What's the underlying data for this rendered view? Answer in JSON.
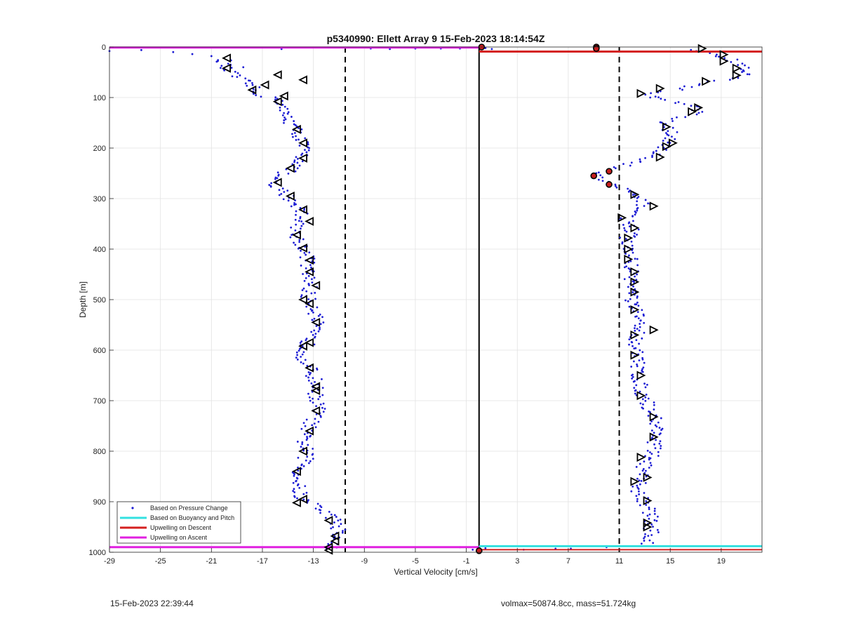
{
  "chart_data": {
    "type": "scatter",
    "title": "p5340990: Ellett Array 9 15-Feb-2023 18:14:54Z",
    "xlabel": "Vertical Velocity [cm/s]",
    "ylabel": "Depth [m]",
    "xlim": [
      -29,
      22.2
    ],
    "ylim": [
      1000,
      0
    ],
    "xticks": [
      -29,
      -25,
      -21,
      -17,
      -13,
      -9,
      -5,
      -1,
      3,
      7,
      11,
      15,
      19
    ],
    "yticks": [
      0,
      100,
      200,
      300,
      400,
      500,
      600,
      700,
      800,
      900,
      1000
    ],
    "grid": true,
    "legend_position": "bottom-left",
    "colors": {
      "pressure": "#1c1cd4",
      "buoyancy": "#33e0e0",
      "descent": "#d42020",
      "ascent": "#e020e0",
      "marker_outline": "#000000",
      "grid": "#e2e2e2"
    },
    "legend": [
      {
        "label": "Based on Pressure Change",
        "style": "dot",
        "color": "#1c1cd4"
      },
      {
        "label": "Based on Buoyancy and Pitch",
        "style": "line",
        "color": "#33e0e0"
      },
      {
        "label": "Upwelling on Descent",
        "style": "line",
        "color": "#d42020"
      },
      {
        "label": "Upwelling on Ascent",
        "style": "line",
        "color": "#e020e0"
      }
    ],
    "vertical_lines": [
      {
        "x": -10.5,
        "style": "dashed"
      },
      {
        "x": 0,
        "style": "solid"
      },
      {
        "x": 11,
        "style": "dashed"
      }
    ],
    "ascent_profile": [
      [
        -20,
        25
      ],
      [
        -20,
        42
      ],
      [
        -19,
        60
      ],
      [
        -18,
        75
      ],
      [
        -17.5,
        90
      ],
      [
        -16.5,
        100
      ],
      [
        -15.5,
        105
      ],
      [
        -15.5,
        125
      ],
      [
        -15,
        140
      ],
      [
        -14.5,
        160
      ],
      [
        -14,
        180
      ],
      [
        -13.8,
        200
      ],
      [
        -14,
        230
      ],
      [
        -15,
        245
      ],
      [
        -16.2,
        260
      ],
      [
        -16.5,
        272
      ],
      [
        -15.5,
        285
      ],
      [
        -14.8,
        300
      ],
      [
        -14,
        320
      ],
      [
        -13.8,
        345
      ],
      [
        -14.5,
        370
      ],
      [
        -13.8,
        395
      ],
      [
        -13.4,
        420
      ],
      [
        -13.5,
        445
      ],
      [
        -13.2,
        470
      ],
      [
        -13.5,
        495
      ],
      [
        -12.8,
        520
      ],
      [
        -12.8,
        545
      ],
      [
        -13.2,
        565
      ],
      [
        -13.5,
        590
      ],
      [
        -13.8,
        615
      ],
      [
        -13.2,
        640
      ],
      [
        -12.8,
        665
      ],
      [
        -12.8,
        695
      ],
      [
        -12.6,
        720
      ],
      [
        -13.2,
        745
      ],
      [
        -13.8,
        770
      ],
      [
        -13.6,
        795
      ],
      [
        -13.6,
        820
      ],
      [
        -14.2,
        845
      ],
      [
        -14.2,
        870
      ],
      [
        -14,
        895
      ],
      [
        -12.6,
        910
      ],
      [
        -11.8,
        925
      ],
      [
        -11.2,
        940
      ],
      [
        -11,
        955
      ],
      [
        -11.2,
        970
      ],
      [
        -11.6,
        985
      ],
      [
        -11.6,
        995
      ]
    ],
    "ascent_markers": [
      [
        -19.8,
        22
      ],
      [
        -19.8,
        42
      ],
      [
        -15.8,
        55
      ],
      [
        -13.8,
        65
      ],
      [
        -16.8,
        75
      ],
      [
        -17.8,
        85
      ],
      [
        -15.3,
        97
      ],
      [
        -15.8,
        108
      ],
      [
        -14.3,
        163
      ],
      [
        -13.8,
        190
      ],
      [
        -13.8,
        220
      ],
      [
        -14.8,
        240
      ],
      [
        -15.8,
        268
      ],
      [
        -14.8,
        295
      ],
      [
        -13.8,
        322
      ],
      [
        -13.3,
        345
      ],
      [
        -14.3,
        372
      ],
      [
        -13.8,
        398
      ],
      [
        -13.3,
        422
      ],
      [
        -13.3,
        445
      ],
      [
        -12.8,
        472
      ],
      [
        -13.8,
        500
      ],
      [
        -13.3,
        508
      ],
      [
        -12.8,
        545
      ],
      [
        -13.3,
        585
      ],
      [
        -13.8,
        592
      ],
      [
        -13.3,
        635
      ],
      [
        -12.8,
        672
      ],
      [
        -12.8,
        680
      ],
      [
        -12.8,
        720
      ],
      [
        -13.3,
        760
      ],
      [
        -13.8,
        800
      ],
      [
        -14.3,
        840
      ],
      [
        -13.8,
        895
      ],
      [
        -14.3,
        902
      ],
      [
        -11.8,
        937
      ],
      [
        -11.3,
        968
      ],
      [
        -11.3,
        978
      ],
      [
        -11.8,
        990
      ]
    ],
    "descent_profile": [
      [
        16.5,
        5
      ],
      [
        18,
        12
      ],
      [
        19.5,
        22
      ],
      [
        20.5,
        35
      ],
      [
        21,
        50
      ],
      [
        20.5,
        60
      ],
      [
        18,
        70
      ],
      [
        15.5,
        85
      ],
      [
        13.5,
        92
      ],
      [
        13.5,
        100
      ],
      [
        16,
        110
      ],
      [
        17.5,
        118
      ],
      [
        17,
        130
      ],
      [
        14.5,
        150
      ],
      [
        15,
        170
      ],
      [
        15,
        190
      ],
      [
        14,
        210
      ],
      [
        12,
        230
      ],
      [
        10,
        245
      ],
      [
        9,
        255
      ],
      [
        10.2,
        270
      ],
      [
        12,
        290
      ],
      [
        13,
        315
      ],
      [
        11.5,
        338
      ],
      [
        12,
        360
      ],
      [
        11.5,
        385
      ],
      [
        11.8,
        410
      ],
      [
        12,
        435
      ],
      [
        12,
        460
      ],
      [
        12,
        485
      ],
      [
        12,
        510
      ],
      [
        12.5,
        535
      ],
      [
        12.5,
        560
      ],
      [
        12.3,
        585
      ],
      [
        12.3,
        610
      ],
      [
        12.5,
        635
      ],
      [
        12.5,
        660
      ],
      [
        12.8,
        685
      ],
      [
        13.3,
        710
      ],
      [
        13.8,
        735
      ],
      [
        14,
        760
      ],
      [
        13.8,
        785
      ],
      [
        13.5,
        810
      ],
      [
        12.8,
        835
      ],
      [
        12.5,
        860
      ],
      [
        12.5,
        880
      ],
      [
        13,
        900
      ],
      [
        13.5,
        925
      ],
      [
        13.5,
        945
      ],
      [
        13.5,
        965
      ],
      [
        13,
        985
      ]
    ],
    "descent_markers": [
      [
        17.5,
        3
      ],
      [
        19.2,
        15
      ],
      [
        19.2,
        28
      ],
      [
        20.2,
        42
      ],
      [
        20.2,
        56
      ],
      [
        17.8,
        68
      ],
      [
        14.2,
        82
      ],
      [
        12.7,
        92
      ],
      [
        17.2,
        120
      ],
      [
        16.7,
        128
      ],
      [
        14.7,
        158
      ],
      [
        15.2,
        190
      ],
      [
        14.7,
        197
      ],
      [
        14.2,
        218
      ],
      [
        12.2,
        292
      ],
      [
        13.7,
        315
      ],
      [
        11.2,
        338
      ],
      [
        12.2,
        358
      ],
      [
        11.7,
        378
      ],
      [
        11.7,
        400
      ],
      [
        11.7,
        420
      ],
      [
        12.2,
        445
      ],
      [
        12.2,
        465
      ],
      [
        12.2,
        485
      ],
      [
        12.2,
        520
      ],
      [
        13.7,
        560
      ],
      [
        12.2,
        570
      ],
      [
        12.2,
        610
      ],
      [
        12.7,
        650
      ],
      [
        12.7,
        690
      ],
      [
        13.7,
        732
      ],
      [
        13.7,
        772
      ],
      [
        12.7,
        812
      ],
      [
        12.2,
        860
      ],
      [
        13.2,
        852
      ],
      [
        13.2,
        898
      ],
      [
        13.2,
        942
      ],
      [
        13.2,
        950
      ]
    ],
    "descent_red_markers": [
      [
        9.2,
        0
      ],
      [
        9.2,
        3
      ],
      [
        10.2,
        246
      ],
      [
        9,
        255
      ],
      [
        10.2,
        272
      ]
    ],
    "surface_points": [
      [
        -29,
        8
      ],
      [
        -26.5,
        6
      ],
      [
        -24,
        10
      ],
      [
        -22.5,
        14
      ],
      [
        -21,
        18
      ],
      [
        -20.5,
        28
      ],
      [
        -19.5,
        35
      ],
      [
        -18.5,
        40
      ],
      [
        -15.5,
        4
      ],
      [
        -8.5,
        3
      ],
      [
        -7,
        4
      ],
      [
        -5,
        3
      ],
      [
        -3,
        3
      ],
      [
        -1.5,
        3
      ],
      [
        0.2,
        0
      ],
      [
        0.5,
        2
      ],
      [
        1,
        4
      ]
    ],
    "bottom_points": [
      [
        -1.5,
        990
      ],
      [
        -0.5,
        995
      ],
      [
        0,
        998
      ],
      [
        0.5,
        992
      ],
      [
        3.5,
        995
      ],
      [
        6,
        993
      ],
      [
        7.2,
        993
      ],
      [
        10,
        990
      ]
    ],
    "ascent_line": [
      [
        -29,
        1
      ],
      [
        0,
        1
      ]
    ],
    "ascent_line_bottom": [
      [
        -29,
        990
      ],
      [
        0,
        990
      ]
    ],
    "descent_line": [
      [
        0,
        9
      ],
      [
        22.2,
        9
      ]
    ],
    "descent_line_bottom": [
      [
        0,
        995
      ],
      [
        22.2,
        995
      ]
    ],
    "buoyancy_line_bottom": [
      [
        0,
        988
      ],
      [
        22.2,
        988
      ]
    ]
  },
  "footer": {
    "timestamp": "15-Feb-2023 22:39:44",
    "info": "volmax=50874.8cc, mass=51.724kg"
  }
}
